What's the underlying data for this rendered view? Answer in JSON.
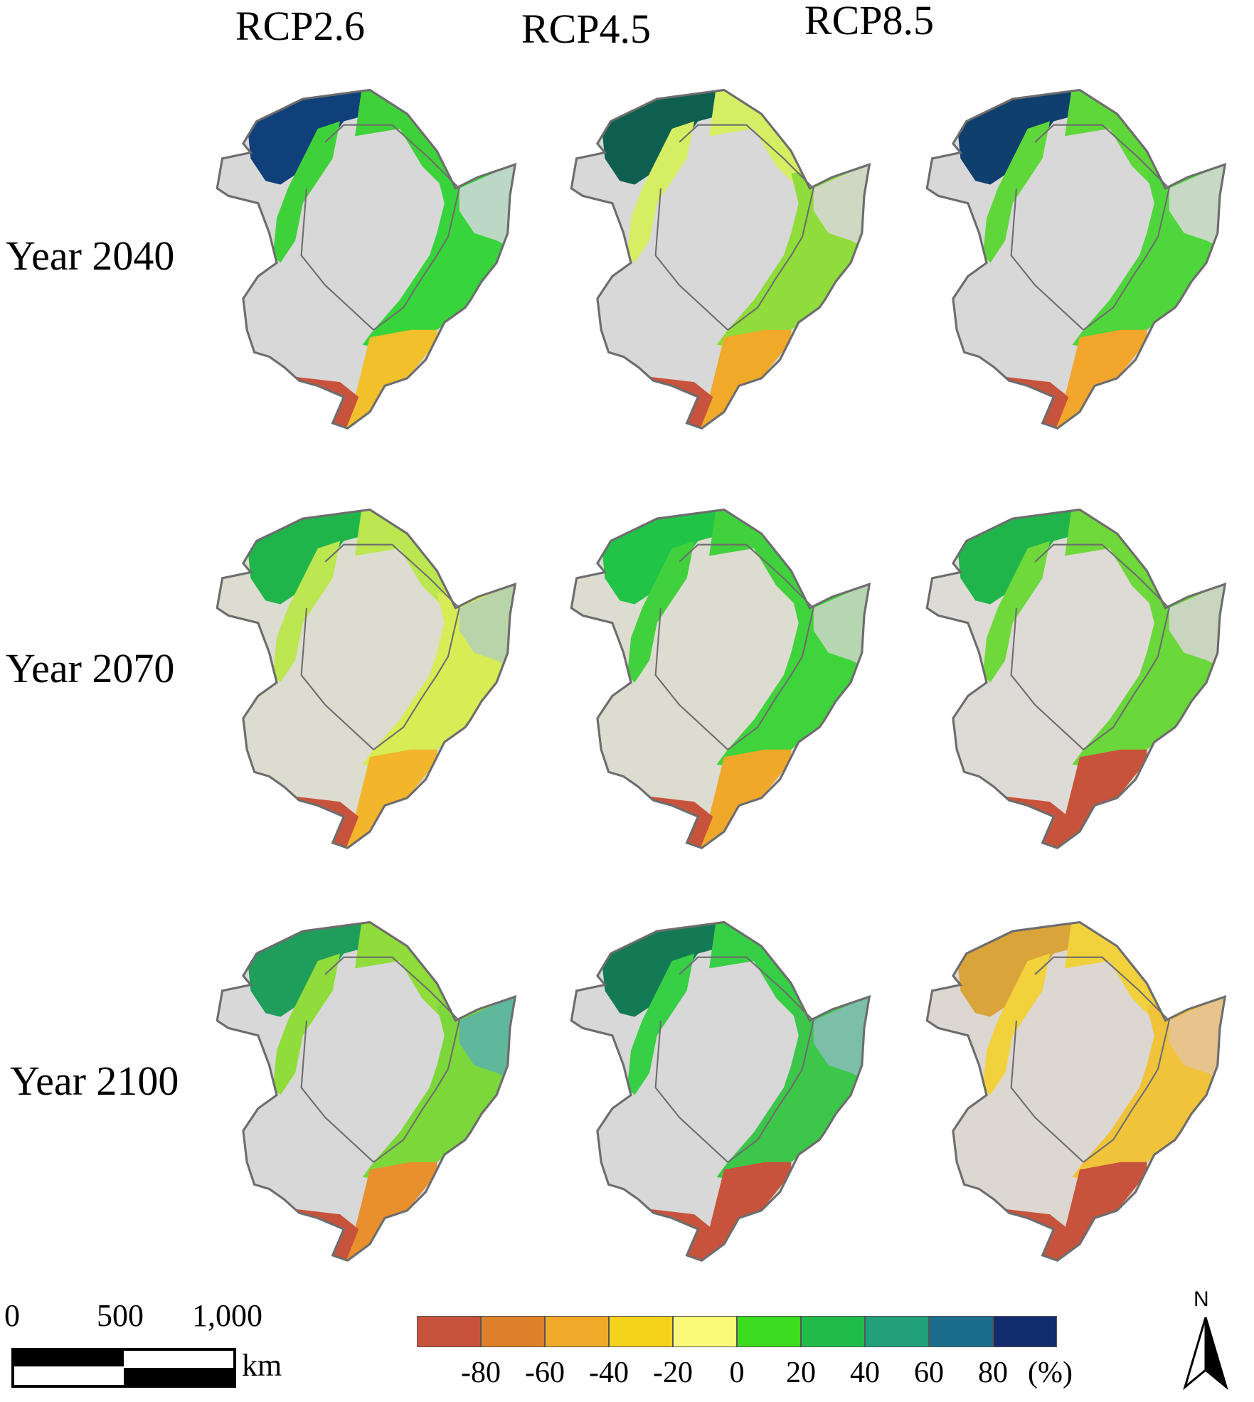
{
  "columns": [
    "RCP2.6",
    "RCP4.5",
    "RCP8.5"
  ],
  "rows": [
    "Year 2040",
    "Year 2070",
    "Year 2100"
  ],
  "maps": [
    {
      "scenario": "RCP2.6",
      "year": "Year 2040",
      "nw": "#10407a",
      "north": "#3fd13a",
      "center": "#d8d8d8",
      "east": "#38d43c",
      "south": "#f2c02a",
      "sw": "#c8533c",
      "far_east": "#bcd7c4"
    },
    {
      "scenario": "RCP4.5",
      "year": "Year 2040",
      "nw": "#0e5f4f",
      "north": "#d6ee63",
      "center": "#d8d8d8",
      "east": "#8fdc3a",
      "south": "#f0a928",
      "sw": "#c8533c",
      "far_east": "#cfd8c2"
    },
    {
      "scenario": "RCP8.5",
      "year": "Year 2040",
      "nw": "#0e3f6d",
      "north": "#5fd73a",
      "center": "#d8d8d8",
      "east": "#4fd63c",
      "south": "#f2a62c",
      "sw": "#c8533c",
      "far_east": "#c7d8c4"
    },
    {
      "scenario": "RCP2.6",
      "year": "Year 2070",
      "nw": "#1fb54a",
      "north": "#bce750",
      "center": "#dcdcd0",
      "east": "#d7ec55",
      "south": "#f2b52c",
      "sw": "#c8533c",
      "far_east": "#b8d4a8"
    },
    {
      "scenario": "RCP4.5",
      "year": "Year 2070",
      "nw": "#22c447",
      "north": "#41d13c",
      "center": "#dcdcd0",
      "east": "#3fd33c",
      "south": "#f0a82a",
      "sw": "#c8533c",
      "far_east": "#b5d6b0"
    },
    {
      "scenario": "RCP8.5",
      "year": "Year 2070",
      "nw": "#1fb54a",
      "north": "#6fd83a",
      "center": "#dedad6",
      "east": "#6ad73a",
      "south": "#c8533c",
      "sw": "#c8533c",
      "far_east": "#c9d6bf"
    },
    {
      "scenario": "RCP2.6",
      "year": "Year 2100",
      "nw": "#1f9d5a",
      "north": "#8fdc3a",
      "center": "#d8d8d8",
      "east": "#7cd83a",
      "south": "#e98f2e",
      "sw": "#c8533c",
      "far_east": "#5fb79c"
    },
    {
      "scenario": "RCP4.5",
      "year": "Year 2100",
      "nw": "#147a55",
      "north": "#36cf45",
      "center": "#d8d8d8",
      "east": "#3cc74a",
      "south": "#c8533c",
      "sw": "#c8533c",
      "far_east": "#7bbfa9"
    },
    {
      "scenario": "RCP8.5",
      "year": "Year 2100",
      "nw": "#d9a43a",
      "north": "#f2d23c",
      "center": "#ddd7d2",
      "east": "#f0c33a",
      "south": "#c8533c",
      "sw": "#c8533c",
      "far_east": "#e7c48c"
    }
  ],
  "scale_bar": {
    "ticks": [
      "0",
      "500",
      "1,000"
    ],
    "unit": "km"
  },
  "legend": {
    "colors": [
      "#c8533c",
      "#e07f2a",
      "#f0a928",
      "#f5d21c",
      "#fbf97a",
      "#3cdc1e",
      "#1fbc4a",
      "#21a07a",
      "#1a6e8c",
      "#122d6e"
    ],
    "ticks": [
      "-80",
      "-60",
      "-40",
      "-20",
      "0",
      "20",
      "40",
      "60",
      "80"
    ],
    "unit": "(%)"
  },
  "north_arrow": {
    "label": "N"
  }
}
